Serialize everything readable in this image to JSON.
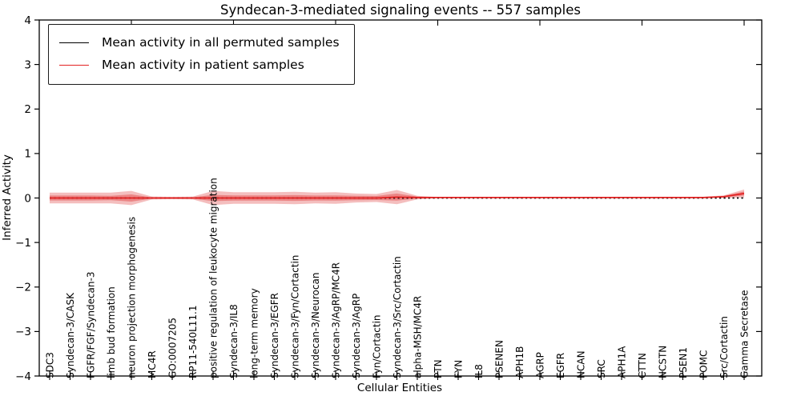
{
  "title": "Syndecan-3-mediated signaling events -- 557 samples",
  "legend": {
    "items": [
      {
        "label": "Mean activity in all permuted samples",
        "color": "#000000"
      },
      {
        "label": "Mean activity in patient samples",
        "color": "#e32222"
      }
    ]
  },
  "chart_data": {
    "type": "line",
    "title": "Syndecan-3-mediated signaling events -- 557 samples",
    "xlabel": "Cellular Entities",
    "ylabel": "Inferred Activity",
    "ylim": [
      -4,
      4
    ],
    "yticks": [
      -4,
      -3,
      -2,
      -1,
      0,
      1,
      2,
      3,
      4
    ],
    "grid": false,
    "legend_position": "upper left",
    "categories": [
      "SDC3",
      "Syndecan-3/CASK",
      "FGFR/FGF/Syndecan-3",
      "limb bud formation",
      "neuron projection morphogenesis",
      "MC4R",
      "GO:0007205",
      "RP11-540L11.1",
      "positive regulation of leukocyte migration",
      "Syndecan-3/IL8",
      "long-term memory",
      "Syndecan-3/EGFR",
      "Syndecan-3/Fyn/Cortactin",
      "Syndecan-3/Neurocan",
      "Syndecan-3/AgRP/MC4R",
      "Syndecan-3/AgRP",
      "Fyn/Cortactin",
      "Syndecan-3/Src/Cortactin",
      "alpha-MSH/MC4R",
      "PTN",
      "FYN",
      "IL8",
      "PSENEN",
      "APH1B",
      "AGRP",
      "EGFR",
      "NCAN",
      "SRC",
      "APH1A",
      "CTTN",
      "NCSTN",
      "PSEN1",
      "POMC",
      "Src/Cortactin",
      "Gamma Secretase"
    ],
    "series": [
      {
        "name": "Mean activity in all permuted samples",
        "color": "#000000",
        "line_style": "dotted",
        "values": [
          0,
          0,
          0,
          0,
          0,
          0,
          0,
          0,
          0,
          0,
          0,
          0,
          0,
          0,
          0,
          0,
          0,
          0,
          0,
          0,
          0,
          0,
          0,
          0,
          0,
          0,
          0,
          0,
          0,
          0,
          0,
          0,
          0,
          0,
          0
        ]
      },
      {
        "name": "Mean activity in patient samples",
        "color": "#e32222",
        "line_style": "solid",
        "values": [
          0,
          0,
          0,
          0,
          0,
          0,
          0,
          0,
          0,
          0,
          0,
          0,
          0,
          0,
          0,
          0,
          0,
          0.02,
          0.01,
          0.01,
          0.01,
          0.01,
          0.01,
          0.01,
          0.01,
          0.01,
          0.01,
          0.01,
          0.01,
          0.01,
          0.01,
          0.01,
          0.01,
          0.03,
          0.1
        ]
      }
    ],
    "patient_band": {
      "description": "red shaded spread around patient mean; half-widths in activity units",
      "fill_color": "#dc2828",
      "outer_halfwidth": [
        0.12,
        0.12,
        0.12,
        0.12,
        0.16,
        0.035,
        0.025,
        0.03,
        0.16,
        0.13,
        0.13,
        0.13,
        0.14,
        0.12,
        0.13,
        0.1,
        0.09,
        0.16,
        0.04,
        0.012,
        0.012,
        0.012,
        0.012,
        0.012,
        0.012,
        0.012,
        0.012,
        0.012,
        0.012,
        0.012,
        0.012,
        0.012,
        0.015,
        0.03,
        0.09
      ],
      "inner_halfwidth": [
        0.055,
        0.055,
        0.055,
        0.05,
        0.08,
        0.015,
        0.012,
        0.015,
        0.07,
        0.06,
        0.06,
        0.06,
        0.065,
        0.055,
        0.06,
        0.05,
        0.045,
        0.08,
        0.02,
        0.008,
        0.008,
        0.008,
        0.008,
        0.008,
        0.008,
        0.008,
        0.008,
        0.008,
        0.008,
        0.008,
        0.008,
        0.008,
        0.01,
        0.015,
        0.045
      ]
    }
  }
}
